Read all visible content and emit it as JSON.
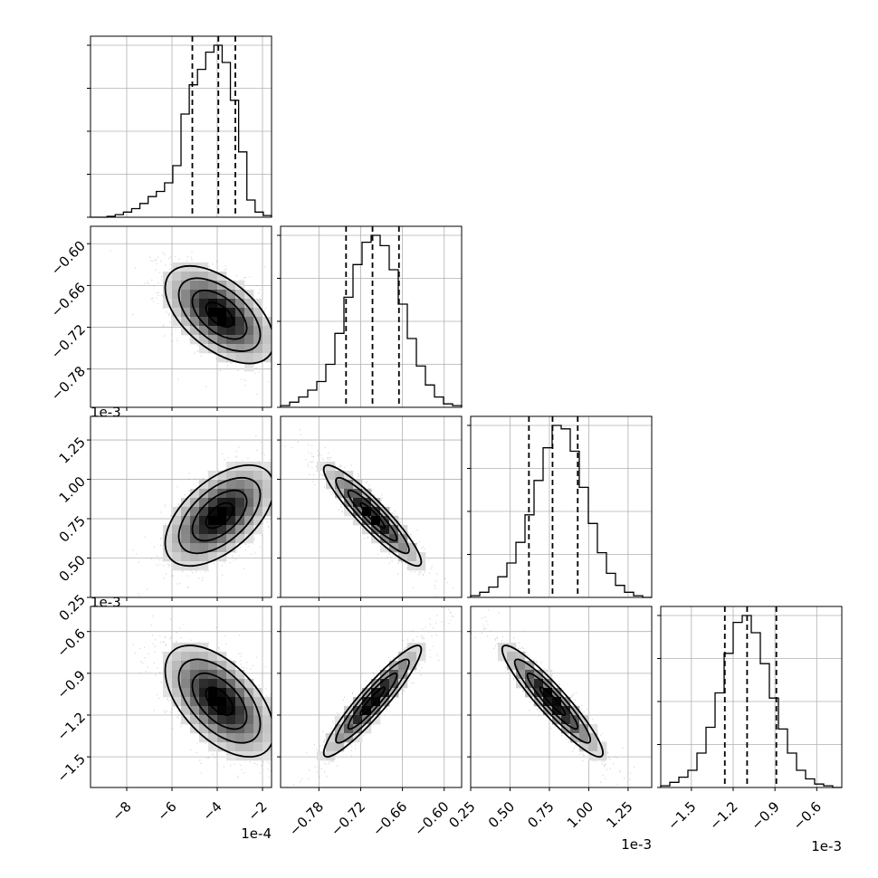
{
  "chart_data": {
    "type": "corner",
    "parameters": [
      {
        "axis_range": [
          -9.6,
          -1.6
        ],
        "offset_label": "1e-4",
        "ticks": [
          -8,
          -6,
          -4,
          -2
        ],
        "tick_labels": [
          "−8",
          "−6",
          "−4",
          "−2"
        ],
        "quantiles": [
          -5.1,
          -3.95,
          -3.2
        ],
        "hist": [
          0,
          0,
          0.005,
          0.015,
          0.03,
          0.05,
          0.08,
          0.12,
          0.15,
          0.2,
          0.3,
          0.6,
          0.77,
          0.86,
          0.96,
          1.0,
          0.9,
          0.68,
          0.38,
          0.1,
          0.03,
          0.01
        ]
      },
      {
        "axis_range": [
          -0.835,
          -0.575
        ],
        "offset_label": "1e-3",
        "ticks": [
          -0.78,
          -0.72,
          -0.66,
          -0.6
        ],
        "tick_labels": [
          "−0.78",
          "−0.72",
          "−0.66",
          "−0.60"
        ],
        "quantiles": [
          -0.741,
          -0.703,
          -0.665
        ],
        "hist": [
          0.01,
          0.03,
          0.06,
          0.1,
          0.15,
          0.25,
          0.43,
          0.64,
          0.83,
          0.96,
          1.0,
          0.94,
          0.8,
          0.6,
          0.4,
          0.24,
          0.13,
          0.06,
          0.02,
          0.01
        ]
      },
      {
        "axis_range": [
          0.25,
          1.4
        ],
        "offset_label": "1e-3",
        "ticks": [
          0.25,
          0.5,
          0.75,
          1.0,
          1.25
        ],
        "tick_labels": [
          "0.25",
          "0.50",
          "0.75",
          "1.00",
          "1.25"
        ],
        "quantiles": [
          0.62,
          0.77,
          0.93
        ],
        "hist": [
          0.01,
          0.03,
          0.06,
          0.12,
          0.2,
          0.32,
          0.48,
          0.68,
          0.87,
          1.0,
          0.98,
          0.85,
          0.64,
          0.43,
          0.26,
          0.14,
          0.07,
          0.03,
          0.01,
          0
        ]
      },
      {
        "axis_range": [
          -1.72,
          -0.42
        ],
        "offset_label": "1e-3",
        "ticks": [
          -1.5,
          -1.2,
          -0.9,
          -0.6
        ],
        "tick_labels": [
          "−1.5",
          "−1.2",
          "−0.9",
          "−0.6"
        ],
        "quantiles": [
          -1.26,
          -1.1,
          -0.89
        ],
        "hist": [
          0.01,
          0.03,
          0.06,
          0.1,
          0.2,
          0.35,
          0.55,
          0.78,
          0.96,
          1.0,
          0.9,
          0.72,
          0.52,
          0.34,
          0.2,
          0.1,
          0.05,
          0.02,
          0.01,
          0
        ]
      }
    ],
    "y_axis_labels_col0": {
      "1": {
        "ticks": [
          -0.78,
          -0.72,
          -0.66,
          -0.6
        ],
        "tick_labels": [
          "−0.78",
          "−0.72",
          "−0.66",
          "−0.60"
        ],
        "offset_label": "1e-3"
      },
      "2": {
        "ticks": [
          0.25,
          0.5,
          0.75,
          1.0,
          1.25
        ],
        "tick_labels": [
          "0.25",
          "0.50",
          "0.75",
          "1.00",
          "1.25"
        ],
        "offset_label": "1e-3"
      },
      "3": {
        "ticks": [
          -1.5,
          -1.2,
          -0.9,
          -0.6
        ],
        "tick_labels": [
          "−1.5",
          "−1.2",
          "−0.9",
          "−0.6"
        ]
      }
    },
    "pairs": [
      {
        "row": 1,
        "col": 0,
        "center": [
          -3.9,
          -0.702
        ],
        "sigma": [
          1.2,
          0.035
        ],
        "rho": -0.55
      },
      {
        "row": 2,
        "col": 0,
        "center": [
          -3.9,
          0.77
        ],
        "sigma": [
          1.2,
          0.16
        ],
        "rho": 0.55
      },
      {
        "row": 2,
        "col": 1,
        "center": [
          -0.703,
          0.77
        ],
        "sigma": [
          0.035,
          0.16
        ],
        "rho": -0.92
      },
      {
        "row": 3,
        "col": 0,
        "center": [
          -3.9,
          -1.1
        ],
        "sigma": [
          1.2,
          0.2
        ],
        "rho": -0.55
      },
      {
        "row": 3,
        "col": 1,
        "center": [
          -0.703,
          -1.1
        ],
        "sigma": [
          0.035,
          0.2
        ],
        "rho": 0.93
      },
      {
        "row": 3,
        "col": 2,
        "center": [
          0.77,
          -1.1
        ],
        "sigma": [
          0.16,
          0.2
        ],
        "rho": -0.93
      }
    ],
    "grid": true,
    "legend": "none"
  }
}
